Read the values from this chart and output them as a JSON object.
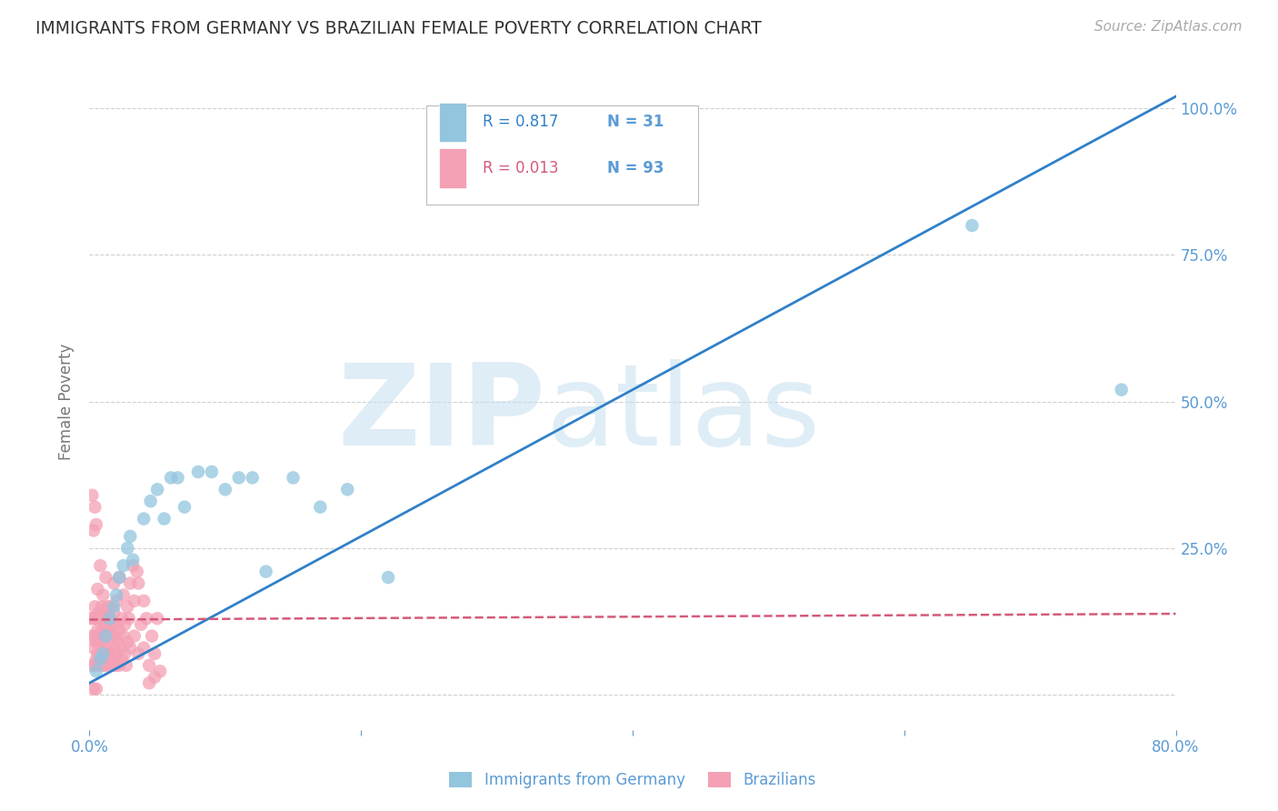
{
  "title": "IMMIGRANTS FROM GERMANY VS BRAZILIAN FEMALE POVERTY CORRELATION CHART",
  "source": "Source: ZipAtlas.com",
  "ylabel": "Female Poverty",
  "watermark_zip": "ZIP",
  "watermark_atlas": "atlas",
  "xlim": [
    0.0,
    0.8
  ],
  "ylim": [
    -0.06,
    1.06
  ],
  "germany_R": 0.817,
  "germany_N": 31,
  "brazil_R": 0.013,
  "brazil_N": 93,
  "germany_color": "#92c5de",
  "brazil_color": "#f4a0b5",
  "trendline_germany_color": "#3080c8",
  "trendline_brazil_color": "#d45a7a",
  "title_color": "#333333",
  "axis_color": "#5b9bd5",
  "germany_x": [
    0.005,
    0.008,
    0.01,
    0.012,
    0.015,
    0.018,
    0.02,
    0.022,
    0.025,
    0.028,
    0.03,
    0.032,
    0.04,
    0.045,
    0.05,
    0.055,
    0.06,
    0.065,
    0.07,
    0.08,
    0.09,
    0.1,
    0.11,
    0.12,
    0.13,
    0.15,
    0.17,
    0.19,
    0.22,
    0.65,
    0.76
  ],
  "germany_y": [
    0.04,
    0.06,
    0.07,
    0.1,
    0.13,
    0.15,
    0.17,
    0.2,
    0.22,
    0.25,
    0.27,
    0.23,
    0.3,
    0.33,
    0.35,
    0.3,
    0.37,
    0.37,
    0.32,
    0.38,
    0.38,
    0.35,
    0.37,
    0.37,
    0.21,
    0.37,
    0.32,
    0.35,
    0.2,
    0.8,
    0.52
  ],
  "brazil_x": [
    0.001,
    0.002,
    0.002,
    0.003,
    0.003,
    0.004,
    0.004,
    0.004,
    0.005,
    0.005,
    0.005,
    0.006,
    0.006,
    0.007,
    0.007,
    0.007,
    0.008,
    0.008,
    0.008,
    0.009,
    0.009,
    0.009,
    0.01,
    0.01,
    0.01,
    0.011,
    0.011,
    0.012,
    0.012,
    0.013,
    0.013,
    0.013,
    0.014,
    0.014,
    0.015,
    0.015,
    0.016,
    0.016,
    0.017,
    0.017,
    0.018,
    0.018,
    0.019,
    0.019,
    0.02,
    0.02,
    0.021,
    0.022,
    0.022,
    0.023,
    0.024,
    0.024,
    0.025,
    0.026,
    0.026,
    0.027,
    0.028,
    0.029,
    0.03,
    0.032,
    0.033,
    0.035,
    0.036,
    0.038,
    0.04,
    0.042,
    0.044,
    0.046,
    0.048,
    0.05,
    0.003,
    0.004,
    0.005,
    0.006,
    0.008,
    0.01,
    0.012,
    0.015,
    0.018,
    0.02,
    0.022,
    0.025,
    0.028,
    0.03,
    0.033,
    0.036,
    0.04,
    0.044,
    0.048,
    0.052,
    0.002,
    0.003,
    0.005
  ],
  "brazil_y": [
    0.13,
    0.05,
    0.1,
    0.08,
    0.13,
    0.05,
    0.1,
    0.15,
    0.06,
    0.09,
    0.13,
    0.07,
    0.11,
    0.05,
    0.09,
    0.14,
    0.06,
    0.1,
    0.13,
    0.07,
    0.11,
    0.15,
    0.05,
    0.09,
    0.13,
    0.07,
    0.11,
    0.05,
    0.1,
    0.08,
    0.13,
    0.15,
    0.06,
    0.11,
    0.07,
    0.13,
    0.05,
    0.1,
    0.06,
    0.12,
    0.08,
    0.14,
    0.05,
    0.1,
    0.07,
    0.12,
    0.09,
    0.05,
    0.11,
    0.08,
    0.13,
    0.06,
    0.1,
    0.07,
    0.12,
    0.05,
    0.09,
    0.13,
    0.08,
    0.22,
    0.1,
    0.21,
    0.07,
    0.12,
    0.08,
    0.13,
    0.05,
    0.1,
    0.07,
    0.13,
    0.28,
    0.32,
    0.29,
    0.18,
    0.22,
    0.17,
    0.2,
    0.15,
    0.19,
    0.16,
    0.2,
    0.17,
    0.15,
    0.19,
    0.16,
    0.19,
    0.16,
    0.02,
    0.03,
    0.04,
    0.34,
    0.01,
    0.01
  ],
  "background_color": "#ffffff",
  "grid_color": "#d0d0d0",
  "figsize": [
    14.06,
    8.92
  ],
  "dpi": 100
}
